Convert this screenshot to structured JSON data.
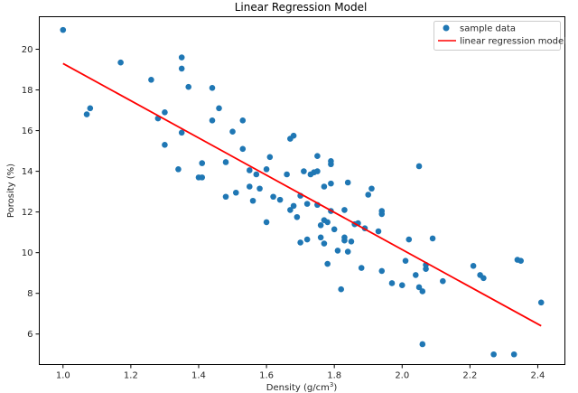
{
  "chart_data": {
    "type": "scatter",
    "title": "Linear Regression Model",
    "xlabel": "Density (g/cm",
    "xlabel_sup": "3",
    "xlabel_suffix": ")",
    "ylabel": "Porosity (%)",
    "xlim": [
      0.93,
      2.48
    ],
    "ylim": [
      4.5,
      21.6
    ],
    "xticks": [
      1.0,
      1.2,
      1.4,
      1.6,
      1.8,
      2.0,
      2.2,
      2.4
    ],
    "xtick_labels": [
      "1.0",
      "1.2",
      "1.4",
      "1.6",
      "1.8",
      "2.0",
      "2.2",
      "2.4"
    ],
    "yticks": [
      6,
      8,
      10,
      12,
      14,
      16,
      18,
      20
    ],
    "ytick_labels": [
      "6",
      "8",
      "10",
      "12",
      "14",
      "16",
      "18",
      "20"
    ],
    "legend_position": "top-right",
    "series": [
      {
        "name": "sample data",
        "kind": "scatter",
        "color": "#1f77b4",
        "points": [
          [
            1.0,
            20.95
          ],
          [
            1.07,
            16.8
          ],
          [
            1.08,
            17.1
          ],
          [
            1.17,
            19.35
          ],
          [
            1.26,
            18.5
          ],
          [
            1.28,
            16.6
          ],
          [
            1.3,
            16.9
          ],
          [
            1.3,
            15.3
          ],
          [
            1.34,
            14.1
          ],
          [
            1.35,
            15.9
          ],
          [
            1.35,
            19.6
          ],
          [
            1.35,
            19.05
          ],
          [
            1.37,
            18.15
          ],
          [
            1.4,
            13.7
          ],
          [
            1.41,
            13.7
          ],
          [
            1.41,
            14.4
          ],
          [
            1.44,
            16.5
          ],
          [
            1.44,
            18.1
          ],
          [
            1.46,
            17.1
          ],
          [
            1.48,
            14.45
          ],
          [
            1.48,
            12.75
          ],
          [
            1.5,
            15.95
          ],
          [
            1.51,
            12.95
          ],
          [
            1.53,
            15.1
          ],
          [
            1.53,
            16.5
          ],
          [
            1.55,
            13.25
          ],
          [
            1.55,
            14.05
          ],
          [
            1.56,
            12.55
          ],
          [
            1.57,
            13.85
          ],
          [
            1.58,
            13.15
          ],
          [
            1.6,
            14.1
          ],
          [
            1.6,
            11.5
          ],
          [
            1.61,
            14.7
          ],
          [
            1.62,
            12.75
          ],
          [
            1.64,
            12.6
          ],
          [
            1.66,
            13.85
          ],
          [
            1.67,
            15.6
          ],
          [
            1.67,
            12.1
          ],
          [
            1.68,
            12.3
          ],
          [
            1.68,
            15.75
          ],
          [
            1.69,
            11.75
          ],
          [
            1.7,
            10.5
          ],
          [
            1.7,
            12.8
          ],
          [
            1.71,
            14.0
          ],
          [
            1.72,
            10.65
          ],
          [
            1.72,
            12.4
          ],
          [
            1.73,
            13.85
          ],
          [
            1.74,
            13.95
          ],
          [
            1.75,
            14.75
          ],
          [
            1.75,
            14.0
          ],
          [
            1.75,
            12.35
          ],
          [
            1.76,
            11.35
          ],
          [
            1.76,
            10.75
          ],
          [
            1.77,
            13.25
          ],
          [
            1.77,
            11.6
          ],
          [
            1.77,
            10.45
          ],
          [
            1.78,
            11.5
          ],
          [
            1.78,
            9.45
          ],
          [
            1.79,
            12.05
          ],
          [
            1.79,
            13.4
          ],
          [
            1.79,
            14.35
          ],
          [
            1.79,
            14.5
          ],
          [
            1.8,
            11.15
          ],
          [
            1.81,
            10.1
          ],
          [
            1.82,
            8.2
          ],
          [
            1.83,
            12.1
          ],
          [
            1.83,
            10.75
          ],
          [
            1.83,
            10.6
          ],
          [
            1.84,
            10.05
          ],
          [
            1.84,
            13.45
          ],
          [
            1.85,
            10.55
          ],
          [
            1.86,
            11.4
          ],
          [
            1.87,
            11.45
          ],
          [
            1.88,
            9.25
          ],
          [
            1.89,
            11.2
          ],
          [
            1.9,
            12.85
          ],
          [
            1.91,
            13.15
          ],
          [
            1.93,
            11.05
          ],
          [
            1.94,
            12.05
          ],
          [
            1.94,
            11.9
          ],
          [
            1.94,
            9.1
          ],
          [
            1.97,
            8.5
          ],
          [
            2.0,
            8.4
          ],
          [
            2.01,
            9.6
          ],
          [
            2.02,
            10.65
          ],
          [
            2.04,
            8.9
          ],
          [
            2.05,
            8.3
          ],
          [
            2.05,
            14.25
          ],
          [
            2.06,
            8.1
          ],
          [
            2.06,
            5.5
          ],
          [
            2.07,
            9.2
          ],
          [
            2.07,
            9.4
          ],
          [
            2.09,
            10.7
          ],
          [
            2.12,
            8.6
          ],
          [
            2.21,
            9.35
          ],
          [
            2.23,
            8.9
          ],
          [
            2.24,
            8.75
          ],
          [
            2.27,
            5.0
          ],
          [
            2.33,
            5.0
          ],
          [
            2.34,
            9.65
          ],
          [
            2.35,
            9.6
          ],
          [
            2.41,
            7.55
          ]
        ]
      },
      {
        "name": "linear regression model",
        "kind": "line",
        "color": "#ff0000",
        "points": [
          [
            1.0,
            19.3
          ],
          [
            2.41,
            6.4
          ]
        ]
      }
    ]
  }
}
